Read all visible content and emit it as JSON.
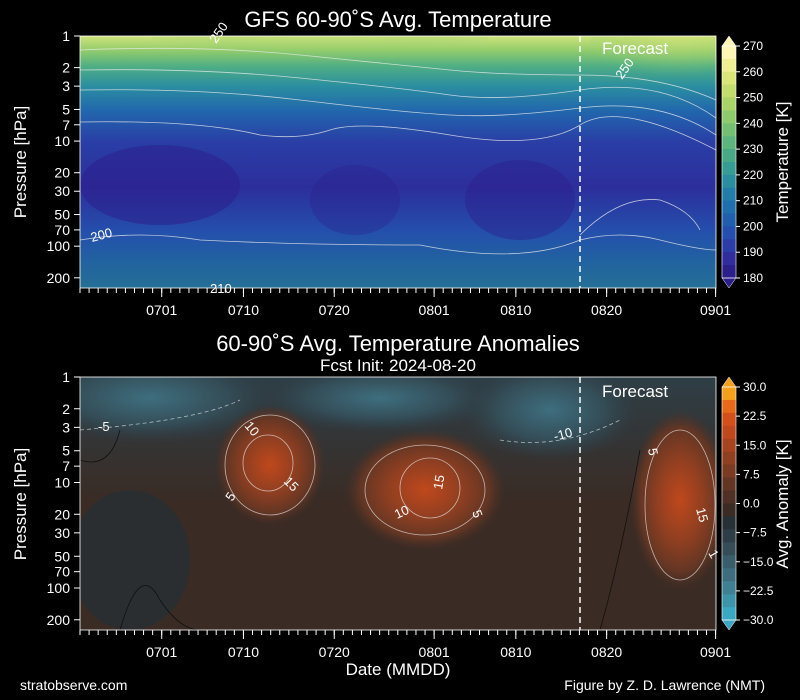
{
  "footer": {
    "left": "stratobserve.com",
    "right": "Figure by Z. D. Lawrence (NMT)"
  },
  "chart_data": [
    {
      "type": "contour",
      "title": "GFS 60-90˚S Avg. Temperature",
      "subtitle": "",
      "ylabel": "Pressure [hPa]",
      "xlabel": "",
      "yscale": "log",
      "ylim": [
        250,
        1
      ],
      "yticks": [
        1,
        2,
        3,
        5,
        7,
        10,
        20,
        30,
        50,
        70,
        100,
        200
      ],
      "ytick_labels": [
        "1",
        "2",
        "3",
        "5",
        "7",
        "10",
        "20",
        "30",
        "50",
        "70",
        "100",
        "200"
      ],
      "xticks": [
        "0701",
        "0710",
        "0720",
        "0801",
        "0810",
        "0820",
        "0901"
      ],
      "forecast_label": "Forecast",
      "forecast_start": "0820",
      "colorbar": {
        "label": "Temperature [K]",
        "range": [
          180,
          270
        ],
        "ticks": [
          "270",
          "260",
          "250",
          "240",
          "230",
          "220",
          "210",
          "200",
          "190",
          "180"
        ],
        "colors": [
          "#2c1f8c",
          "#302d9e",
          "#2b3da8",
          "#244fae",
          "#1f5fae",
          "#1f6fae",
          "#227ea8",
          "#2a8ea0",
          "#369c94",
          "#48a987",
          "#5cb57c",
          "#74c073",
          "#8ecb6c",
          "#a8d468",
          "#c2dd6b",
          "#dbe679",
          "#eeee92",
          "#fdf6b5"
        ]
      },
      "contour_labels": [
        "250",
        "250",
        "200",
        "210"
      ]
    },
    {
      "type": "contour",
      "title": "60-90˚S Avg. Temperature Anomalies",
      "subtitle": "Fcst Init: 2024-08-20",
      "ylabel": "Pressure [hPa]",
      "xlabel": "Date (MMDD)",
      "yscale": "log",
      "ylim": [
        250,
        1
      ],
      "yticks": [
        1,
        2,
        3,
        5,
        7,
        10,
        20,
        30,
        50,
        70,
        100,
        200
      ],
      "ytick_labels": [
        "1",
        "2",
        "3",
        "5",
        "7",
        "10",
        "20",
        "30",
        "50",
        "70",
        "100",
        "200"
      ],
      "xticks": [
        "0701",
        "0710",
        "0720",
        "0801",
        "0810",
        "0820",
        "0901"
      ],
      "forecast_label": "Forecast",
      "forecast_start": "0820",
      "colorbar": {
        "label": "Avg. Anomaly [K]",
        "range": [
          -30,
          30
        ],
        "ticks": [
          "30.0",
          "22.5",
          "15.0",
          "7.5",
          "0.0",
          "−7.5",
          "−15.0",
          "−22.5",
          "−30.0"
        ],
        "colors": [
          "#3aa7c3",
          "#3d93a8",
          "#3f8093",
          "#3e6e7e",
          "#395d6a",
          "#344d57",
          "#2e3e46",
          "#273035",
          "#3a2b24",
          "#4e3024",
          "#633624",
          "#7a3b23",
          "#913f21",
          "#a8431f",
          "#bf481c",
          "#d44f1a",
          "#e86a19",
          "#f5a01a"
        ]
      },
      "contour_labels": [
        "10",
        "15",
        "5",
        "15",
        "10",
        "5",
        "-10",
        "-5",
        "5",
        "15",
        "1"
      ]
    }
  ]
}
